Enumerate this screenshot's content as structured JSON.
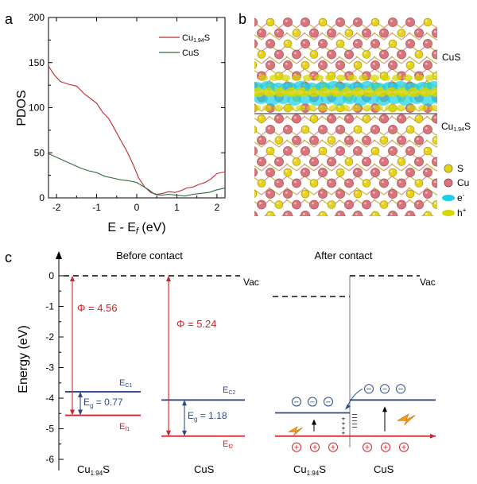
{
  "panel_labels": {
    "a": "a",
    "b": "b",
    "c": "c"
  },
  "colors": {
    "cu194s": "#c0282f",
    "cus": "#2e6b3e",
    "band_blue": "#2c4a86",
    "work_red": "#d0232a",
    "sulfur": "#e6d21a",
    "copper": "#d8747c",
    "electron": "#1ad0e6",
    "hole": "#d6d600"
  },
  "chart_data": [
    {
      "type": "line",
      "panel": "a",
      "title": "",
      "xlabel": "E - E",
      "xlabel_sub": "f",
      "xlabel_unit": " (eV)",
      "ylabel": "PDOS",
      "xlim": [
        -2.2,
        2.2
      ],
      "ylim": [
        0,
        200
      ],
      "xticks": [
        -2,
        -1,
        0,
        1,
        2
      ],
      "yticks": [
        0,
        50,
        100,
        150,
        200
      ],
      "legend_position": "top-right",
      "series": [
        {
          "name": "Cu",
          "name_sub": "1.94",
          "name_tail": "S",
          "color": "#c0282f",
          "x": [
            -2.2,
            -2.05,
            -1.9,
            -1.7,
            -1.5,
            -1.3,
            -1.15,
            -1.0,
            -0.85,
            -0.7,
            -0.55,
            -0.4,
            -0.25,
            -0.1,
            0.05,
            0.2,
            0.35,
            0.5,
            0.65,
            0.8,
            0.95,
            1.1,
            1.25,
            1.4,
            1.55,
            1.7,
            1.85,
            2.0,
            2.2
          ],
          "y": [
            146,
            136,
            129,
            126,
            124,
            115,
            110,
            105,
            95,
            88,
            76,
            64,
            52,
            38,
            22,
            12,
            6,
            4,
            5,
            7,
            6,
            8,
            11,
            12,
            15,
            17,
            21,
            27,
            29
          ]
        },
        {
          "name": "CuS",
          "color": "#2e6b3e",
          "x": [
            -2.2,
            -2.0,
            -1.8,
            -1.6,
            -1.4,
            -1.2,
            -1.0,
            -0.8,
            -0.6,
            -0.4,
            -0.2,
            0.0,
            0.15,
            0.3,
            0.45,
            0.6,
            0.8,
            1.0,
            1.2,
            1.4,
            1.6,
            1.8,
            2.0,
            2.2
          ],
          "y": [
            49,
            45,
            41,
            37,
            33,
            30,
            28,
            24,
            22,
            20,
            19,
            17,
            13,
            9,
            4,
            3,
            4,
            3,
            2,
            4,
            5,
            6,
            9,
            11
          ]
        }
      ]
    },
    {
      "type": "diagram",
      "panel": "c",
      "ylabel": "Energy (eV)",
      "ylim": [
        -6.5,
        0.6
      ],
      "yticks": [
        0,
        -1,
        -2,
        -3,
        -4,
        -5,
        -6
      ],
      "before": {
        "title": "Before contact",
        "vac_label": "Vac",
        "cu194s": {
          "label": "Cu",
          "label_sub": "1.94",
          "label_tail": "S",
          "work_function": "Φ = 4.56",
          "ec": -3.79,
          "ef": -4.56,
          "ec_label": "E",
          "ec_sub": "C1",
          "ef_label": "E",
          "ef_sub": "f1",
          "gap_label": "E",
          "gap_sub": "g",
          "gap_value": " = 0.77"
        },
        "cus": {
          "label": "CuS",
          "work_function": "Φ = 5.24",
          "ec": -4.06,
          "ef": -5.24,
          "ec_label": "E",
          "ec_sub": "C2",
          "ef_label": "E",
          "ef_sub": "f2",
          "gap_label": "E",
          "gap_sub": "g",
          "gap_value": " = 1.18"
        }
      },
      "after": {
        "title": "After contact",
        "vac_label": "Vac",
        "left_label": "Cu",
        "left_sub": "1.94",
        "left_tail": "S",
        "right_label": "CuS",
        "left_vac": -0.68,
        "right_vac": 0,
        "left_ec": -4.48,
        "right_ec": -4.06,
        "fermi": -5.24,
        "electron_symbol": "−",
        "hole_symbol": "+"
      }
    }
  ],
  "panel_b": {
    "labels": {
      "top": "CuS",
      "bottom": "Cu",
      "bottom_sub": "1.94",
      "bottom_tail": "S"
    },
    "legend": [
      {
        "key": "s",
        "label": "S"
      },
      {
        "key": "cu",
        "label": "Cu"
      },
      {
        "key": "electron",
        "label": "e",
        "sup": "-"
      },
      {
        "key": "hole",
        "label": "h",
        "sup": "+"
      }
    ]
  }
}
